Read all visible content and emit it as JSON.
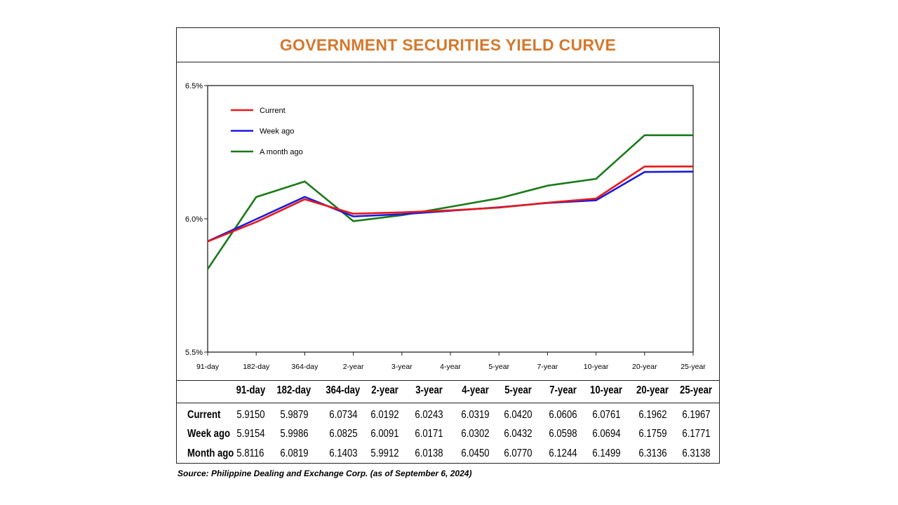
{
  "title": "GOVERNMENT SECURITIES YIELD CURVE",
  "source": "Source: Philippine Dealing and Exchange Corp. (as of September 6, 2024)",
  "chart_data": {
    "type": "line",
    "title": "GOVERNMENT SECURITIES YIELD CURVE",
    "categories": [
      "91-day",
      "182-day",
      "364-day",
      "2-year",
      "3-year",
      "4-year",
      "5-year",
      "7-year",
      "10-year",
      "20-year",
      "25-year"
    ],
    "series": [
      {
        "name": "Current",
        "color": "#e81818",
        "values": [
          5.915,
          5.9879,
          6.0734,
          6.0192,
          6.0243,
          6.0319,
          6.042,
          6.0606,
          6.0761,
          6.1962,
          6.1967
        ]
      },
      {
        "name": "Week ago",
        "color": "#1a1ae0",
        "values": [
          5.9154,
          5.9986,
          6.0825,
          6.0091,
          6.0171,
          6.0302,
          6.0432,
          6.0598,
          6.0694,
          6.1759,
          6.1771
        ]
      },
      {
        "name": "A month ago",
        "color": "#1a7a1a",
        "values": [
          5.8116,
          6.0819,
          6.1403,
          5.9912,
          6.0138,
          6.045,
          6.077,
          6.1244,
          6.1499,
          6.3136,
          6.3138
        ]
      }
    ],
    "ylim": [
      5.5,
      6.5
    ],
    "yticks": [
      5.5,
      6.0,
      6.5
    ],
    "ytick_labels": [
      "5.5%",
      "6.0%",
      "6.5%"
    ],
    "legend_position": "top-left",
    "grid": false,
    "xlabel": "",
    "ylabel": ""
  },
  "table": {
    "headers": [
      "91-day",
      "182-day",
      "364-day",
      "2-year",
      "3-year",
      "4-year",
      "5-year",
      "7-year",
      "10-year",
      "20-year",
      "25-year"
    ],
    "rows": [
      {
        "label": "Current",
        "values": [
          "5.9150",
          "5.9879",
          "6.0734",
          "6.0192",
          "6.0243",
          "6.0319",
          "6.0420",
          "6.0606",
          "6.0761",
          "6.1962",
          "6.1967"
        ]
      },
      {
        "label": "Week ago",
        "values": [
          "5.9154",
          "5.9986",
          "6.0825",
          "6.0091",
          "6.0171",
          "6.0302",
          "6.0432",
          "6.0598",
          "6.0694",
          "6.1759",
          "6.1771"
        ]
      },
      {
        "label": "Month ago",
        "values": [
          "5.8116",
          "6.0819",
          "6.1403",
          "5.9912",
          "6.0138",
          "6.0450",
          "6.0770",
          "6.1244",
          "6.1499",
          "6.3136",
          "6.3138"
        ]
      }
    ]
  }
}
